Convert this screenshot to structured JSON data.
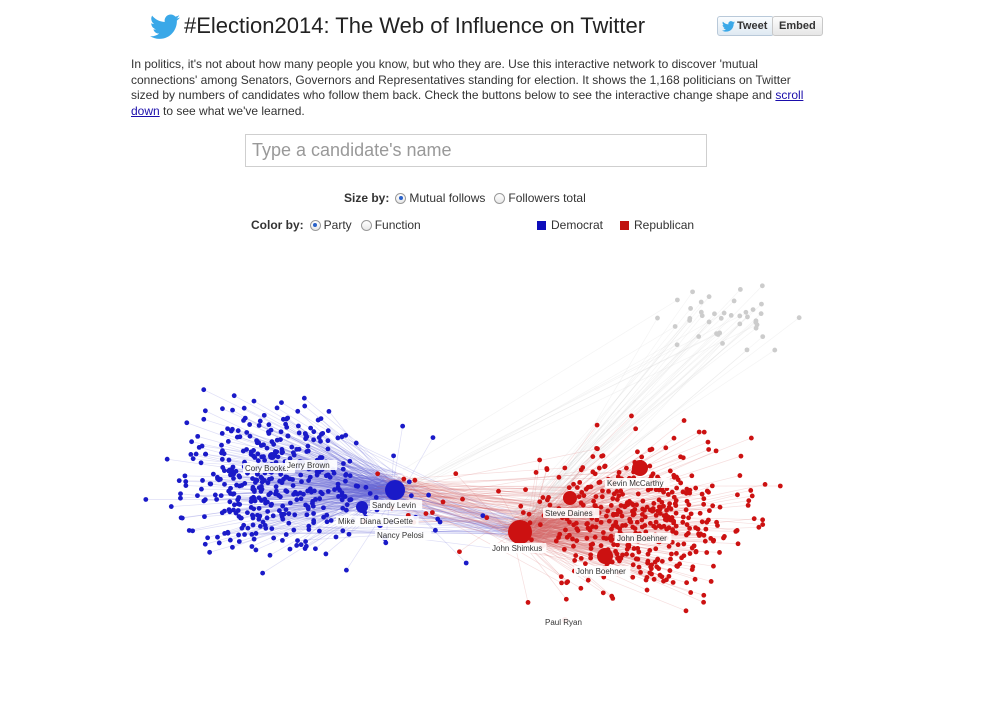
{
  "header": {
    "title": "#Election2014: The Web of Influence on Twitter",
    "tweet_label": "Tweet",
    "embed_label": "Embed",
    "icon": "twitter-bird-icon"
  },
  "intro": {
    "text_before_link": "In politics, it's not about how many people you know, but who they are. Use this interactive network to discover 'mutual connections' among Senators, Governors and Representatives standing for election. It shows the 1,168 politicians on Twitter sized by numbers of candidates who follow them back. Check the buttons below to see the interactive change shape and ",
    "link_text": "scroll down",
    "text_after_link": " to see what we've learned."
  },
  "search": {
    "placeholder": "Type a candidate's name",
    "value": ""
  },
  "size_by": {
    "label": "Size by:",
    "options": [
      "Mutual follows",
      "Followers total"
    ],
    "selected": "Mutual follows"
  },
  "color_by": {
    "label": "Color by:",
    "options": [
      "Party",
      "Function"
    ],
    "selected": "Party"
  },
  "legend": [
    {
      "label": "Democrat",
      "color": "#0d0dba"
    },
    {
      "label": "Republican",
      "color": "#c0120f"
    }
  ],
  "network": {
    "colors": {
      "democrat": "#1a1ac8",
      "republican": "#cc1111",
      "other": "#cccccc"
    },
    "labels": [
      "Cory Booker",
      "Jerry Brown",
      "Sandy Levin",
      "Mike",
      "Diana DeGette",
      "Nancy Pelosi",
      "Kevin McCarthy",
      "Steve Daines",
      "John Shimkus",
      "John Boehner",
      "John Boehner",
      "Paul Ryan"
    ]
  }
}
